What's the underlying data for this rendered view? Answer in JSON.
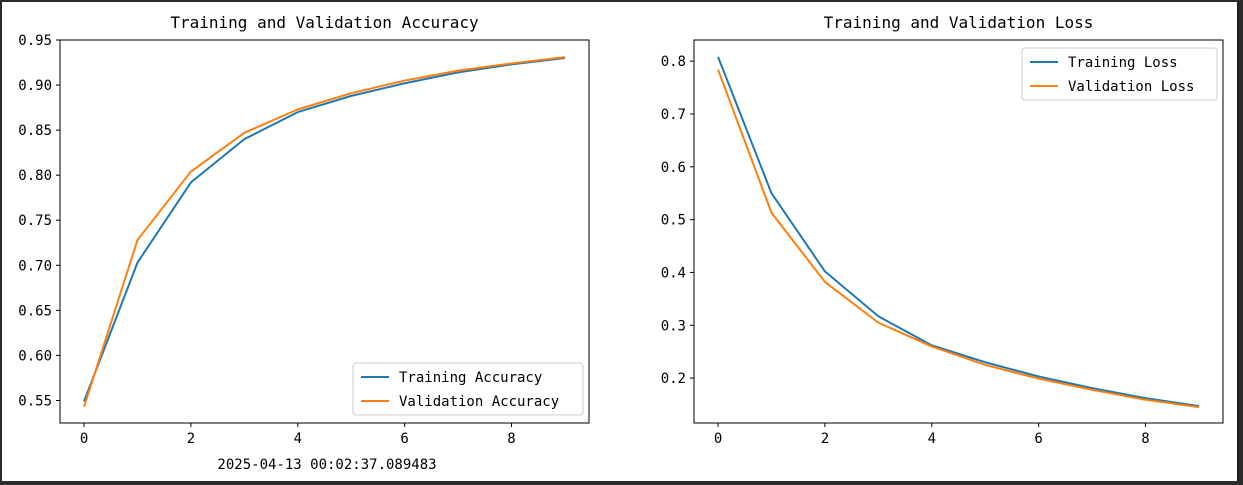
{
  "timestamp": "2025-04-13 00:02:37.089483",
  "chart_data": [
    {
      "type": "line",
      "title": "Training and Validation Accuracy",
      "xlabel": "",
      "ylabel": "",
      "xlim": [
        -0.45,
        9.45
      ],
      "ylim": [
        0.525,
        0.95
      ],
      "xticks": [
        0,
        2,
        4,
        6,
        8
      ],
      "xtick_labels": [
        "0",
        "2",
        "4",
        "6",
        "8"
      ],
      "yticks": [
        0.55,
        0.6,
        0.65,
        0.7,
        0.75,
        0.8,
        0.85,
        0.9,
        0.95
      ],
      "ytick_labels": [
        "0.55",
        "0.60",
        "0.65",
        "0.70",
        "0.75",
        "0.80",
        "0.85",
        "0.90",
        "0.95"
      ],
      "grid": false,
      "legend_position": "lower-right",
      "x": [
        0,
        1,
        2,
        3,
        4,
        5,
        6,
        7,
        8,
        9
      ],
      "series": [
        {
          "name": "Training Accuracy",
          "color": "#1f77b4",
          "values": [
            0.549,
            0.703,
            0.792,
            0.84,
            0.87,
            0.888,
            0.902,
            0.914,
            0.923,
            0.93
          ]
        },
        {
          "name": "Validation Accuracy",
          "color": "#ff7f0e",
          "values": [
            0.543,
            0.728,
            0.804,
            0.847,
            0.873,
            0.891,
            0.905,
            0.916,
            0.924,
            0.931
          ]
        }
      ]
    },
    {
      "type": "line",
      "title": "Training and Validation Loss",
      "xlabel": "",
      "ylabel": "",
      "xlim": [
        -0.45,
        9.45
      ],
      "ylim": [
        0.115,
        0.84
      ],
      "xticks": [
        0,
        2,
        4,
        6,
        8
      ],
      "xtick_labels": [
        "0",
        "2",
        "4",
        "6",
        "8"
      ],
      "yticks": [
        0.2,
        0.3,
        0.4,
        0.5,
        0.6,
        0.7,
        0.8
      ],
      "ytick_labels": [
        "0.2",
        "0.3",
        "0.4",
        "0.5",
        "0.6",
        "0.7",
        "0.8"
      ],
      "grid": false,
      "legend_position": "upper-right",
      "x": [
        0,
        1,
        2,
        3,
        4,
        5,
        6,
        7,
        8,
        9
      ],
      "series": [
        {
          "name": "Training Loss",
          "color": "#1f77b4",
          "values": [
            0.808,
            0.55,
            0.402,
            0.317,
            0.262,
            0.23,
            0.203,
            0.181,
            0.162,
            0.147
          ]
        },
        {
          "name": "Validation Loss",
          "color": "#ff7f0e",
          "values": [
            0.784,
            0.513,
            0.382,
            0.305,
            0.26,
            0.225,
            0.199,
            0.178,
            0.159,
            0.145
          ]
        }
      ]
    }
  ]
}
